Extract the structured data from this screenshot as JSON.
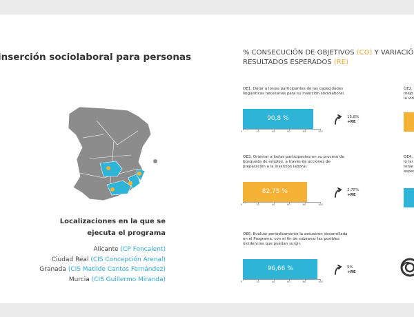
{
  "left": {
    "title": "inserción sociolaboral para personas",
    "locations_heading": [
      "Localizaciones en la que se",
      "ejecuta el programa"
    ],
    "locations": [
      {
        "city": "Alicante",
        "center": "(CP Foncalent)"
      },
      {
        "city": "Ciudad Real",
        "center": "(CIS Concepción Arenal)"
      },
      {
        "city": "Granada",
        "center": "(CIS Matilde Cantos Fernández)"
      },
      {
        "city": "Murcia",
        "center": "(CIS Guillermo Miranda)"
      }
    ]
  },
  "right": {
    "title_line1": [
      "% CONSECUCIÓN DE OBJETIVOS",
      "(CO)",
      "Y VARIACIÓ"
    ],
    "title_line2": [
      "RESULTADOS ESPERADOS",
      "(RE)"
    ],
    "axis": {
      "xlim": [
        0,
        100
      ],
      "xticks": [
        0,
        20,
        40,
        60,
        80,
        100
      ]
    },
    "objectives": [
      {
        "label_lines": [
          "OE1. Dotar a los/as participantes de las capacidades",
          "lingüísticas necesarias para su inserción sociolaboral."
        ],
        "value": 90.8,
        "value_label": "90,8 %",
        "color": "#2db4d6",
        "variation": "15,8%",
        "variation_note": "+RE"
      },
      {
        "label_lines": [
          "OE3. Orientar a los/as participantes en su proceso de",
          "búsqueda de empleo, a través de acciones de",
          "preparación a la inserción laboral."
        ],
        "value": 82.75,
        "value_label": "82,75 %",
        "color": "#f6b234",
        "variation": "2,75%",
        "variation_note": "+RE"
      },
      {
        "label_lines": [
          "OE5. Evaluar periódicamente la actuación desarrollada",
          "en el Programa, con el fin de subsanar las posibles",
          "incidencias que puedan surgir."
        ],
        "value": 96.66,
        "value_label": "96,66 %",
        "color": "#2db4d6",
        "variation": "5%",
        "variation_note": "+RE"
      }
    ],
    "partial_cards": [
      {
        "label_lines": [
          "OE2.",
          "mejo",
          "la vid"
        ],
        "color": "#f6b234"
      },
      {
        "label_lines": [
          "OE4.",
          "lo lar",
          "tenie",
          "espec"
        ],
        "color": "#2db4d6"
      }
    ]
  }
}
